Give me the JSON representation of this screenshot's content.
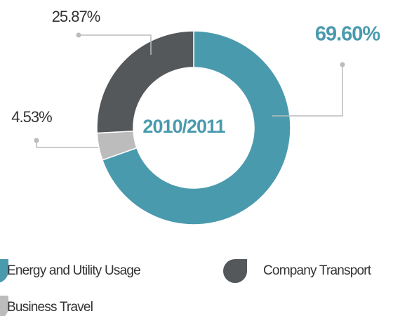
{
  "chart_data": {
    "type": "donut",
    "center_label": "2010/2011",
    "categories": [
      "Energy and Utility Usage",
      "Business Travel",
      "Company Transport"
    ],
    "values": [
      69.6,
      4.53,
      25.87
    ],
    "value_labels": [
      "69.60%",
      "4.53%",
      "25.87%"
    ],
    "colors": [
      "#4a9aad",
      "#bcbcbc",
      "#54585a"
    ]
  }
}
